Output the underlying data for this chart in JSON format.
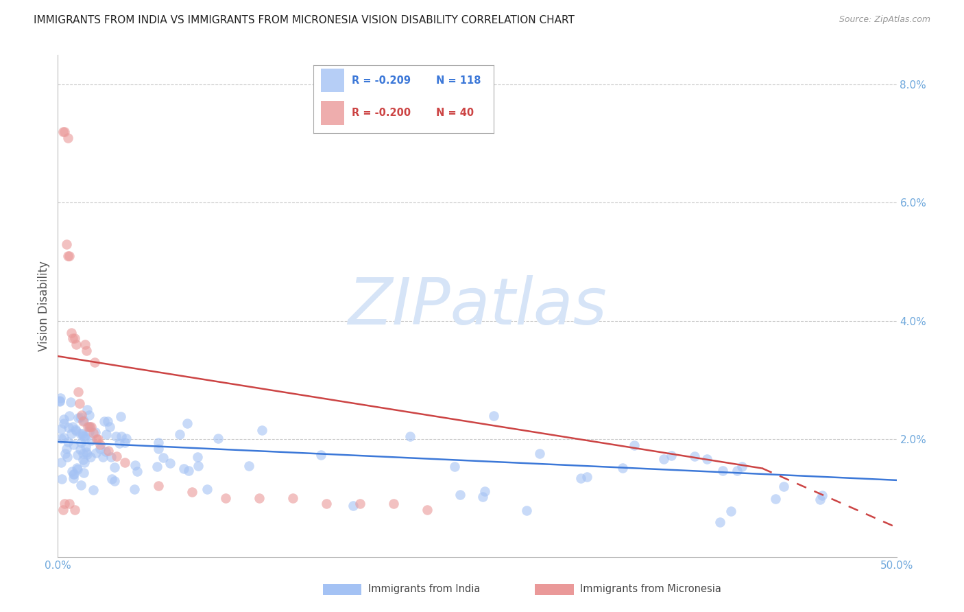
{
  "title": "IMMIGRANTS FROM INDIA VS IMMIGRANTS FROM MICRONESIA VISION DISABILITY CORRELATION CHART",
  "source": "Source: ZipAtlas.com",
  "ylabel": "Vision Disability",
  "xlim": [
    0.0,
    0.5
  ],
  "ylim": [
    0.0,
    0.085
  ],
  "yticks_right": [
    0.02,
    0.04,
    0.06,
    0.08
  ],
  "yticklabels_right": [
    "2.0%",
    "4.0%",
    "6.0%",
    "8.0%"
  ],
  "india_color": "#a4c2f4",
  "micronesia_color": "#ea9999",
  "india_line_color": "#3c78d8",
  "micronesia_line_color": "#cc4444",
  "india_R": -0.209,
  "india_N": 118,
  "micronesia_R": -0.2,
  "micronesia_N": 40,
  "watermark_text": "ZIPatlas",
  "watermark_color": "#d6e4f7",
  "background_color": "#ffffff",
  "grid_color": "#cccccc",
  "axis_color": "#bbbbbb",
  "tick_color": "#6fa8dc",
  "title_fontsize": 11,
  "source_fontsize": 9
}
